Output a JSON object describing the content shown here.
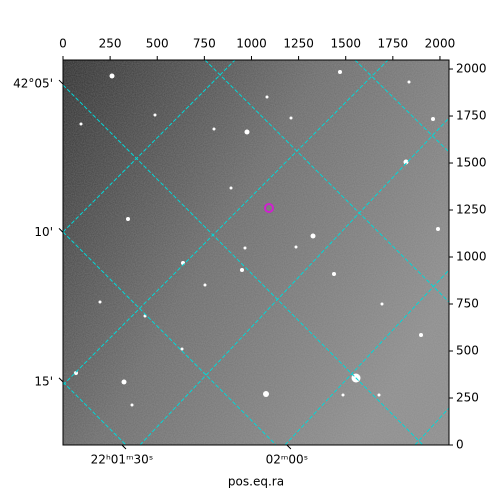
{
  "chart_data": {
    "type": "image",
    "xlabel": "pos.eq.ra",
    "xlim": [
      0,
      2048
    ],
    "ylim": [
      0,
      2048
    ],
    "xticks": [
      0,
      250,
      500,
      750,
      1000,
      1250,
      1500,
      1750,
      2000
    ],
    "yticks": [
      0,
      250,
      500,
      750,
      1000,
      1250,
      1500,
      1750,
      2000
    ],
    "ra_ticks": [
      {
        "value": 313,
        "label": "22ʰ01ᵐ30ˢ"
      },
      {
        "value": 1188,
        "label": "02ᵐ00ˢ"
      }
    ],
    "dec_ticks": [
      {
        "value": 1920,
        "label": "42°05'"
      },
      {
        "value": 1131,
        "label": "10'"
      },
      {
        "value": 336,
        "label": "15'"
      }
    ]
  }
}
